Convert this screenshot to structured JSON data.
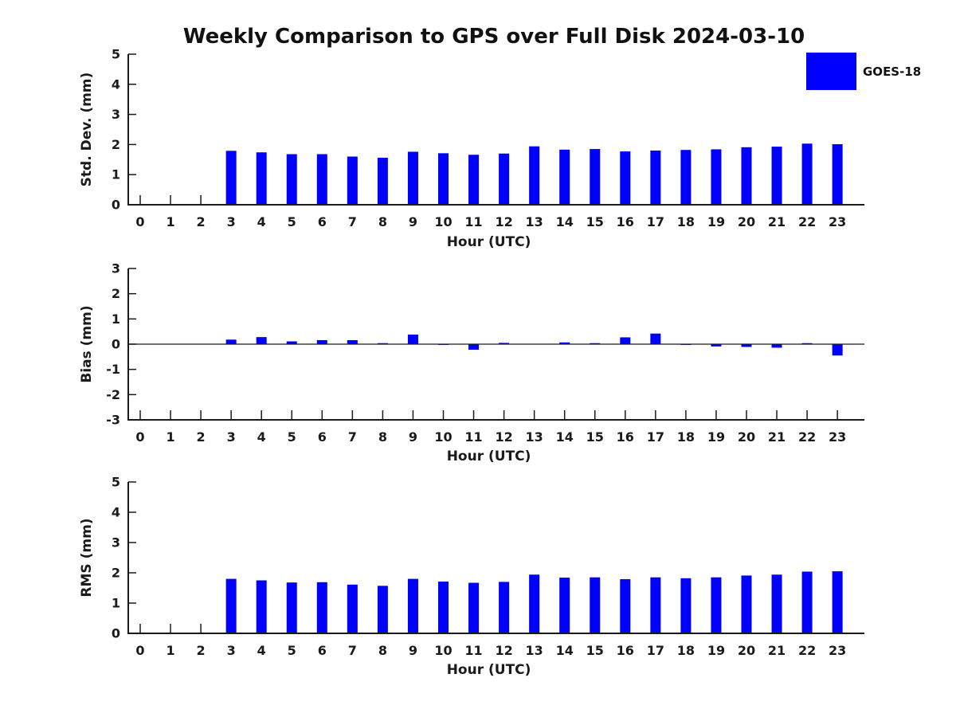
{
  "title": "Weekly Comparison to GPS over Full Disk 2024-03-10",
  "legend": {
    "label": "GOES-18",
    "color": "#0000FF"
  },
  "chart_data": [
    {
      "type": "bar",
      "title": "",
      "ylabel": "Std. Dev. (mm)",
      "xlabel": "Hour (UTC)",
      "categories": [
        0,
        1,
        2,
        3,
        4,
        5,
        6,
        7,
        8,
        9,
        10,
        11,
        12,
        13,
        14,
        15,
        16,
        17,
        18,
        19,
        20,
        21,
        22,
        23
      ],
      "series": [
        {
          "name": "GOES-18",
          "values": [
            null,
            null,
            null,
            1.79,
            1.74,
            1.68,
            1.68,
            1.6,
            1.56,
            1.76,
            1.71,
            1.66,
            1.7,
            1.94,
            1.83,
            1.85,
            1.77,
            1.8,
            1.82,
            1.84,
            1.91,
            1.93,
            2.03,
            2.01
          ]
        }
      ],
      "ylim": [
        0,
        5
      ],
      "yticks": [
        0,
        1,
        2,
        3,
        4,
        5
      ],
      "grid": false,
      "legend_position": "top-right"
    },
    {
      "type": "bar",
      "title": "",
      "ylabel": "Bias (mm)",
      "xlabel": "Hour (UTC)",
      "categories": [
        0,
        1,
        2,
        3,
        4,
        5,
        6,
        7,
        8,
        9,
        10,
        11,
        12,
        13,
        14,
        15,
        16,
        17,
        18,
        19,
        20,
        21,
        22,
        23
      ],
      "series": [
        {
          "name": "GOES-18",
          "values": [
            null,
            null,
            null,
            0.18,
            0.28,
            0.11,
            0.16,
            0.16,
            0.04,
            0.38,
            -0.03,
            -0.22,
            0.05,
            0.0,
            0.07,
            0.04,
            0.27,
            0.42,
            -0.03,
            -0.09,
            -0.11,
            -0.14,
            0.04,
            -0.45
          ]
        }
      ],
      "ylim": [
        -3,
        3
      ],
      "yticks": [
        -3,
        -2,
        -1,
        0,
        1,
        2,
        3
      ],
      "grid": false,
      "zero_line": true
    },
    {
      "type": "bar",
      "title": "",
      "ylabel": "RMS (mm)",
      "xlabel": "Hour (UTC)",
      "categories": [
        0,
        1,
        2,
        3,
        4,
        5,
        6,
        7,
        8,
        9,
        10,
        11,
        12,
        13,
        14,
        15,
        16,
        17,
        18,
        19,
        20,
        21,
        22,
        23
      ],
      "series": [
        {
          "name": "GOES-18",
          "values": [
            null,
            null,
            null,
            1.8,
            1.75,
            1.68,
            1.69,
            1.61,
            1.57,
            1.8,
            1.71,
            1.67,
            1.7,
            1.94,
            1.84,
            1.85,
            1.79,
            1.85,
            1.82,
            1.85,
            1.91,
            1.94,
            2.04,
            2.05
          ]
        }
      ],
      "ylim": [
        0,
        5
      ],
      "yticks": [
        0,
        1,
        2,
        3,
        4,
        5
      ],
      "grid": false
    }
  ]
}
